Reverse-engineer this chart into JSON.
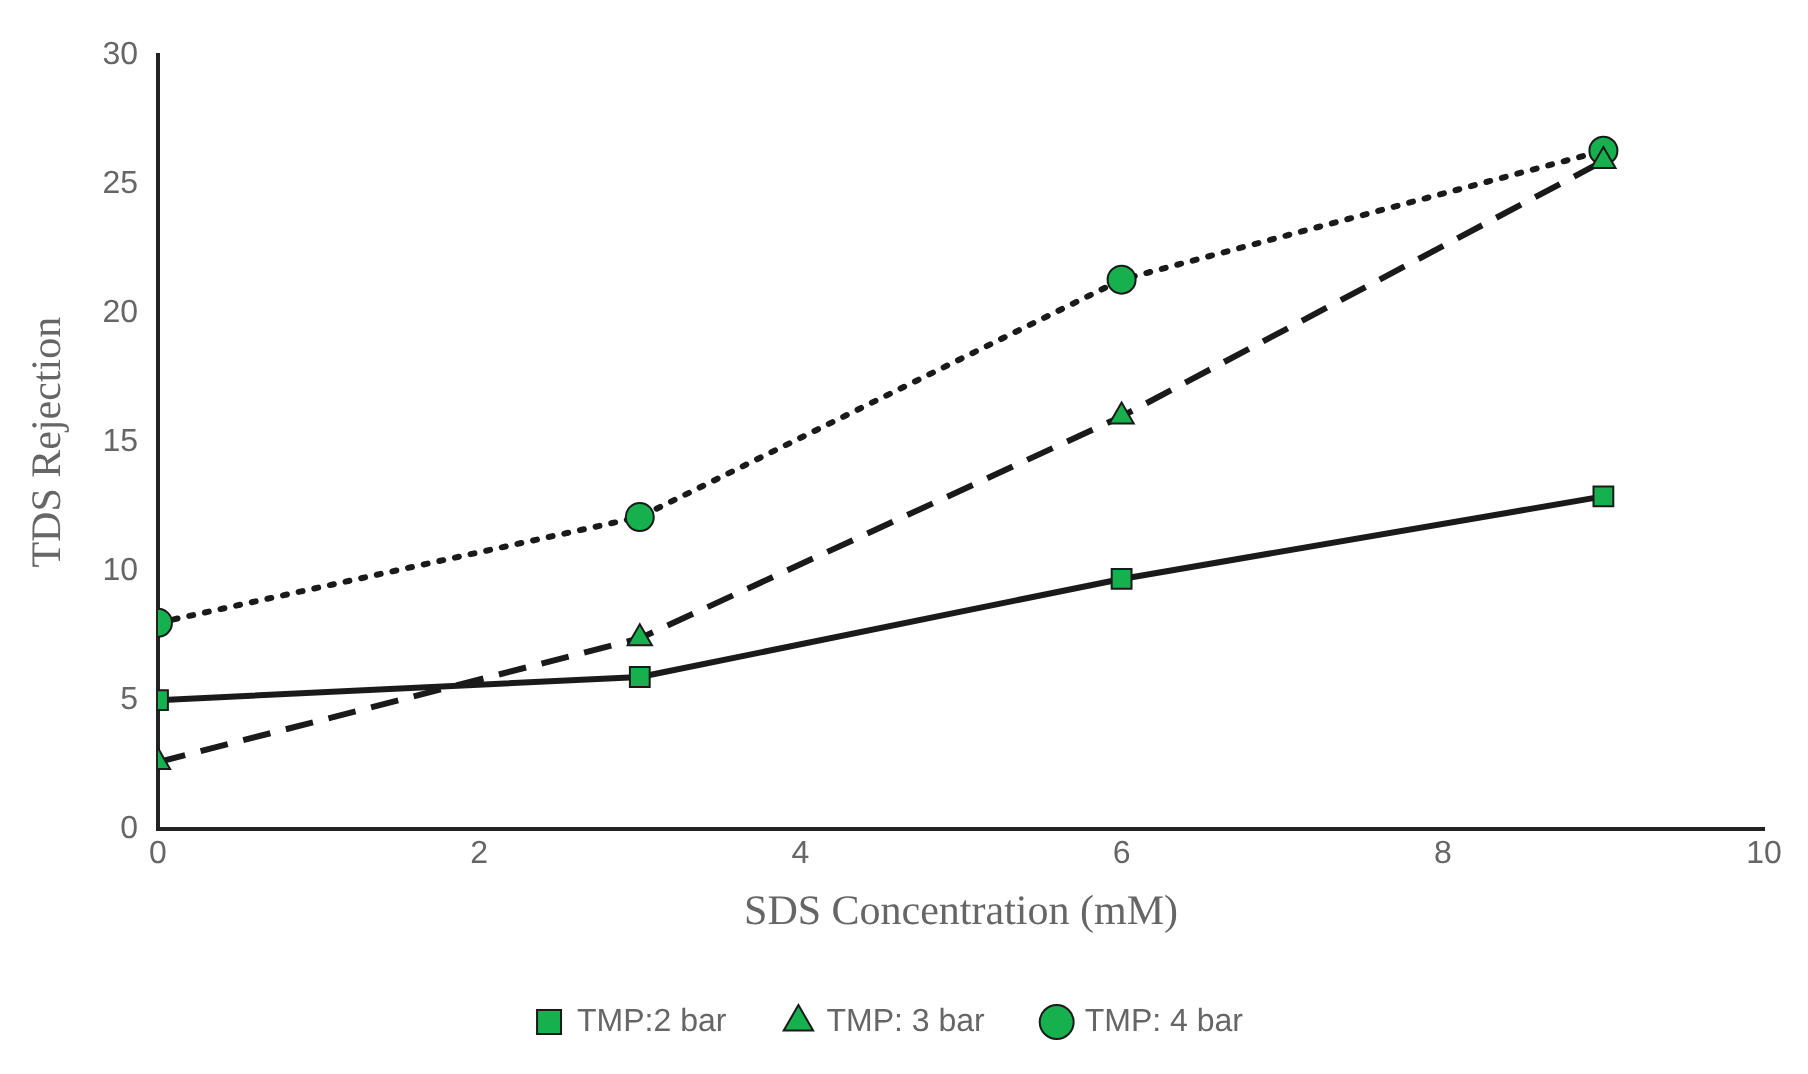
{
  "chart_data": {
    "type": "line",
    "xlabel": "SDS Concentration (mM)",
    "ylabel": "TDS Rejection",
    "x": [
      0,
      3,
      6,
      9
    ],
    "series": [
      {
        "name": "TMP:2 bar",
        "color": "#16b04f",
        "values": [
          5,
          5.9,
          9.7,
          12.9
        ],
        "marker": "square",
        "line_style": "solid"
      },
      {
        "name": "TMP: 3 bar",
        "color": "#16b04f",
        "values": [
          2.6,
          7.4,
          16,
          25.9
        ],
        "marker": "triangle",
        "line_style": "dashed"
      },
      {
        "name": "TMP: 4 bar",
        "color": "#16b04f",
        "values": [
          8,
          12.1,
          21.3,
          26.3
        ],
        "marker": "circle",
        "line_style": "dotted"
      }
    ],
    "xlim": [
      0,
      10
    ],
    "xticks": [
      0,
      2,
      4,
      6,
      8,
      10
    ],
    "ylim": [
      0,
      30
    ],
    "yticks": [
      0,
      5,
      10,
      15,
      20,
      25,
      30
    ],
    "grid": false,
    "legend": "bottom"
  }
}
